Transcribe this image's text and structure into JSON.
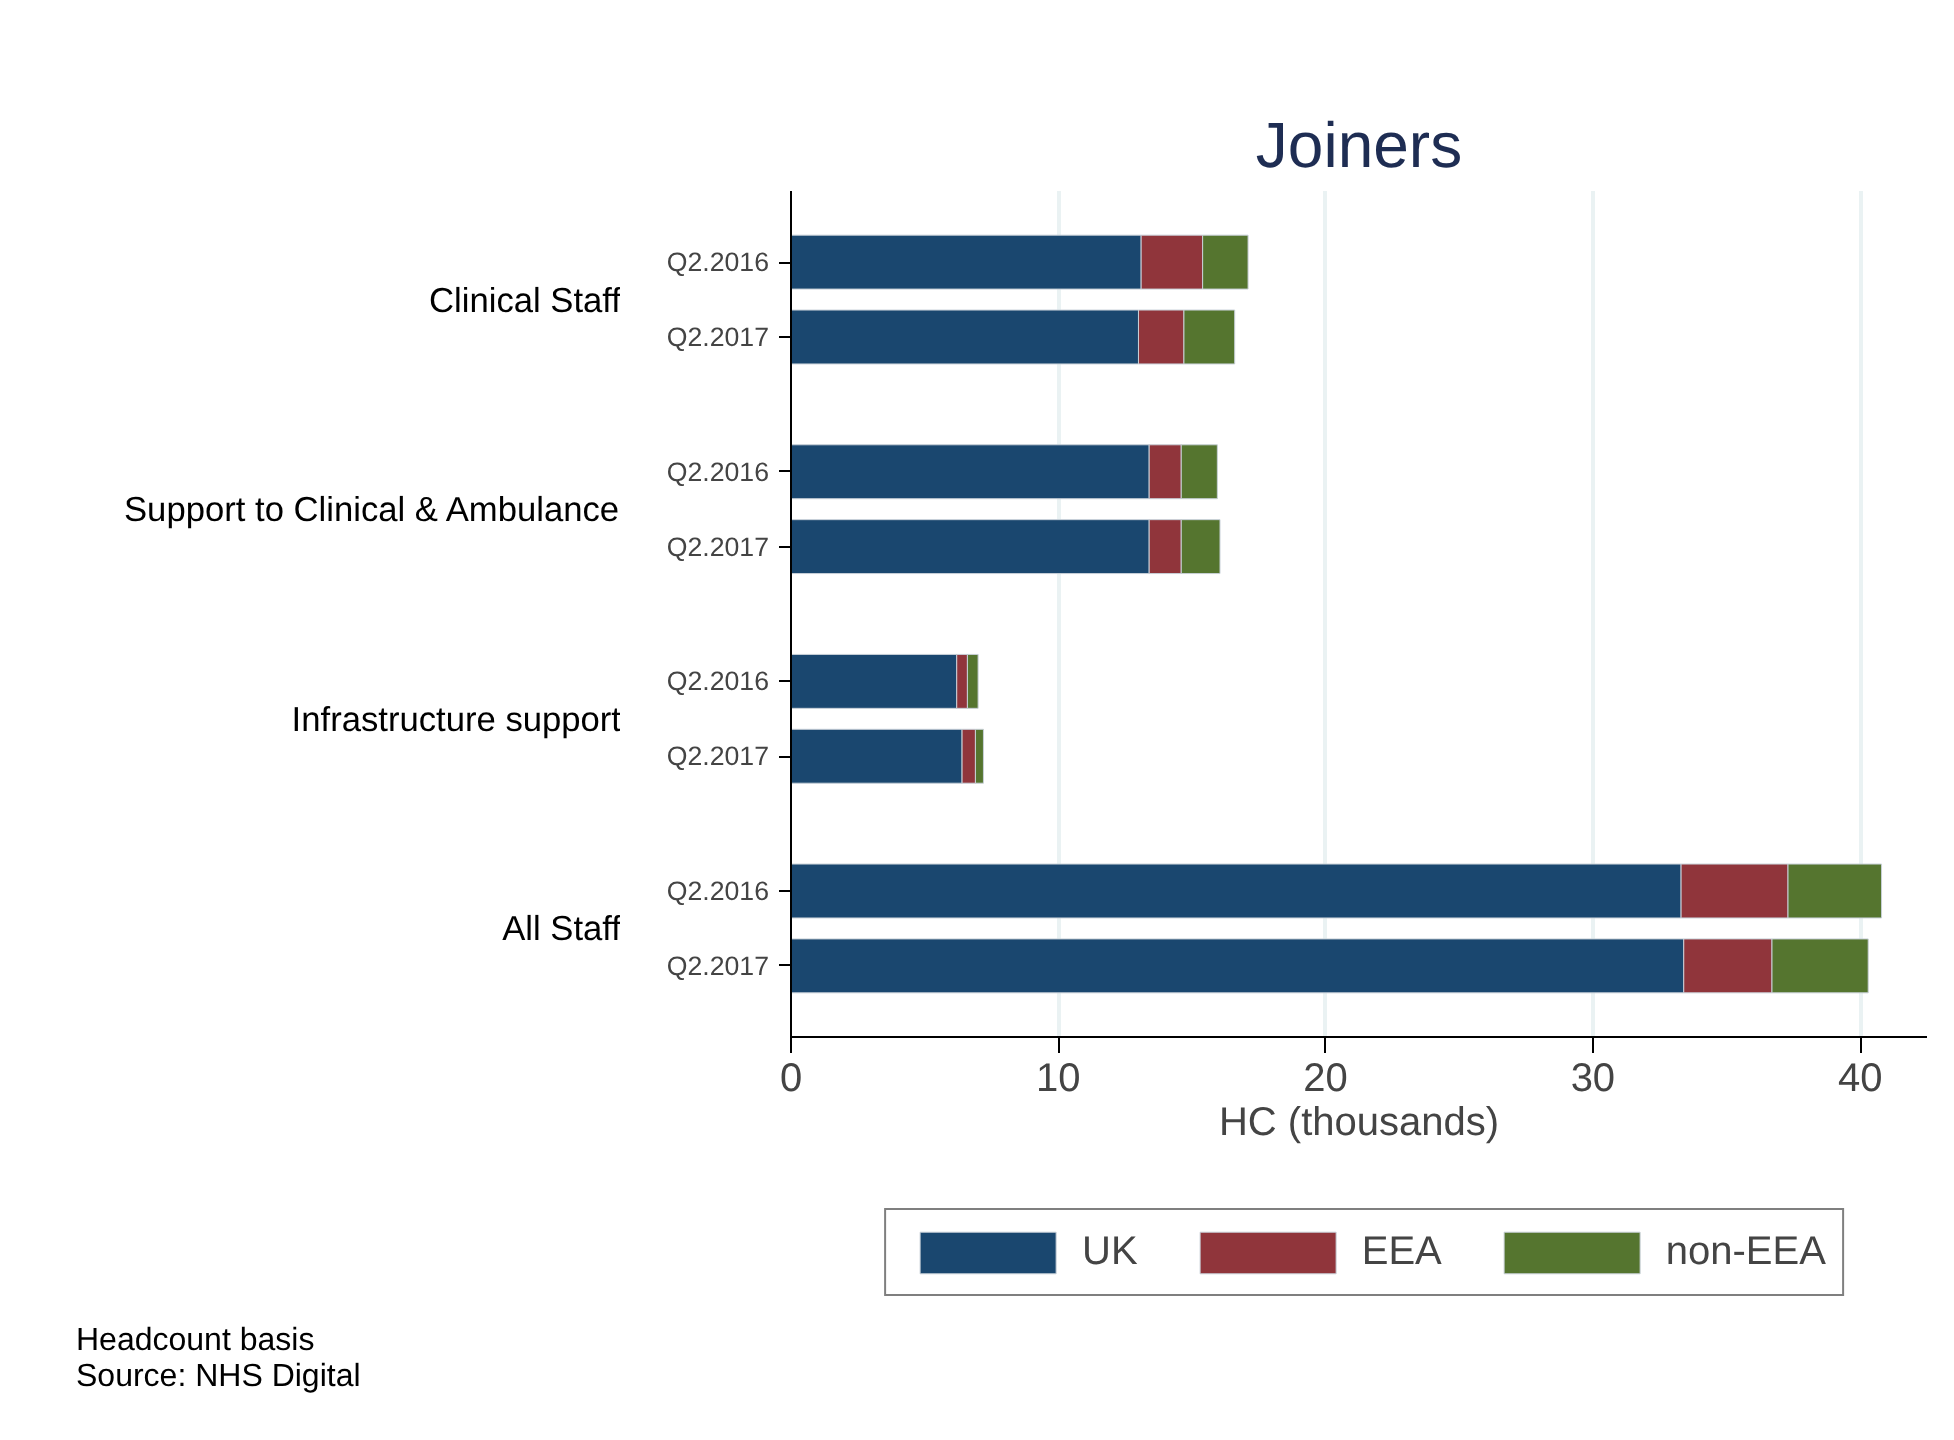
{
  "chart_data": {
    "type": "bar",
    "orientation": "horizontal",
    "stacked": true,
    "title": "Joiners",
    "xlabel": "HC (thousands)",
    "categories": [
      "Q2.2016",
      "Q2.2017",
      "Q2.2016",
      "Q2.2017",
      "Q2.2016",
      "Q2.2017",
      "Q2.2016",
      "Q2.2017"
    ],
    "series": [
      {
        "name": "UK",
        "color": "#1a476f",
        "values": [
          13.1,
          13.0,
          13.4,
          13.4,
          6.2,
          6.4,
          33.3,
          33.4
        ]
      },
      {
        "name": "EEA",
        "color": "#90353b",
        "values": [
          2.3,
          1.7,
          1.2,
          1.2,
          0.4,
          0.5,
          4.0,
          3.3
        ]
      },
      {
        "name": "non-EEA",
        "color": "#55752f",
        "values": [
          1.7,
          1.9,
          1.35,
          1.45,
          0.4,
          0.3,
          3.5,
          3.6
        ]
      }
    ],
    "xlim": [
      0,
      42.5
    ],
    "xticks": [
      0,
      10,
      20,
      30,
      40
    ],
    "grid": "x",
    "legend": "bottom",
    "annotations": [
      "Clinical Staff",
      "Support to Clinical & Ambulance",
      "Infrastructure support",
      "All Staff",
      "Headcount basis",
      "Source: NHS Digital"
    ]
  }
}
